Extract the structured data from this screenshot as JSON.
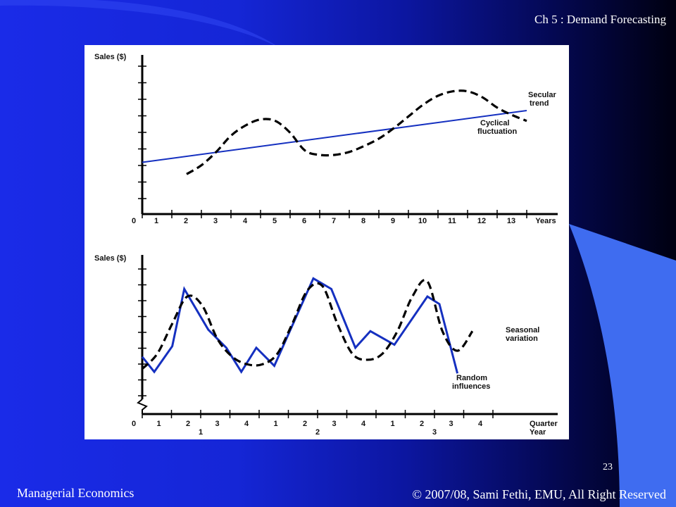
{
  "slide": {
    "header": "Ch 5 : Demand Forecasting",
    "page_number": "23",
    "footer_left": "Managerial Economics",
    "footer_right": "© 2007/08, Sami Fethi, EMU, All Right Reserved"
  },
  "colors": {
    "trend_line": "#1530c0",
    "random_line": "#1530c0",
    "dashed_line": "#000000",
    "accent_shape": "#3f6cf0"
  },
  "chart_data": [
    {
      "type": "line",
      "ylabel": "Sales ($)",
      "xlabel": "Years",
      "x_ticks": [
        "0",
        "1",
        "2",
        "3",
        "4",
        "5",
        "6",
        "7",
        "8",
        "9",
        "10",
        "11",
        "12",
        "13"
      ],
      "xlim": [
        0,
        14
      ],
      "ylim": [
        0,
        100
      ],
      "series": [
        {
          "name": "Secular trend",
          "style": "solid",
          "x": [
            0,
            13
          ],
          "y": [
            35,
            70
          ]
        },
        {
          "name": "Cyclical fluctuation",
          "style": "dashed",
          "x": [
            1.5,
            2,
            2.5,
            3,
            3.5,
            4,
            4.5,
            5,
            5.5,
            6,
            6.5,
            7,
            7.5,
            8,
            8.5,
            9,
            9.5,
            10,
            10.5,
            11,
            11.5,
            12,
            12.5,
            13
          ],
          "y": [
            27,
            33,
            42,
            53,
            60,
            64,
            63,
            55,
            43,
            40,
            40,
            42,
            46,
            51,
            58,
            66,
            74,
            80,
            83,
            83,
            79,
            72,
            67,
            63
          ]
        }
      ]
    },
    {
      "type": "line",
      "ylabel": "Sales ($)",
      "xlabel": "Quarter",
      "x_ticks": [
        "0",
        "1",
        "2",
        "3",
        "4",
        "1",
        "2",
        "3",
        "4",
        "1",
        "2",
        "3",
        "4"
      ],
      "year_labels": [
        "1",
        "2",
        "3"
      ],
      "year_label_name": "Year",
      "xlim": [
        0,
        13
      ],
      "ylim": [
        0,
        100
      ],
      "series": [
        {
          "name": "Random influences",
          "style": "solid",
          "x": [
            0,
            0.4,
            1.0,
            1.4,
            2.2,
            2.8,
            3.3,
            3.8,
            4.4,
            5.7,
            6.3,
            7.1,
            7.6,
            8.4,
            9.5,
            9.9,
            10.5
          ],
          "y": [
            38,
            28,
            45,
            83,
            56,
            44,
            28,
            44,
            32,
            90,
            83,
            44,
            55,
            46,
            78,
            73,
            27
          ]
        },
        {
          "name": "Seasonal variation",
          "style": "dashed",
          "x": [
            0,
            0.5,
            1.0,
            1.5,
            2.0,
            2.5,
            3.0,
            3.5,
            4.0,
            4.5,
            5.0,
            5.5,
            6.0,
            6.5,
            7.0,
            7.5,
            8.0,
            8.5,
            9.0,
            9.5,
            10.0,
            10.5,
            11.0
          ],
          "y": [
            30,
            40,
            60,
            78,
            72,
            50,
            38,
            33,
            33,
            40,
            60,
            82,
            85,
            60,
            40,
            36,
            40,
            55,
            78,
            88,
            55,
            42,
            55
          ]
        }
      ]
    }
  ]
}
